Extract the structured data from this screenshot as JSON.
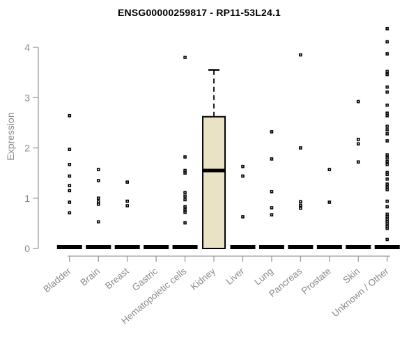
{
  "chart_data": {
    "type": "boxplot",
    "title": "ENSG00000259817 - RP11-53L24.1",
    "ylabel": "Expression",
    "xlabel": "",
    "yticks": [
      0,
      1,
      2,
      3,
      4
    ],
    "ylim": [
      0,
      4.4
    ],
    "grid": false,
    "legend": "none",
    "box_fill": "#EAE2C4",
    "box_stroke": "#000000",
    "axis_color": "#9B9B9B",
    "text_color": "#8A8A8A",
    "point_color": "#000000",
    "categories": [
      "Bladder",
      "Brain",
      "Breast",
      "Gastric",
      "Hematopoietic cells",
      "Kidney",
      "Liver",
      "Lung",
      "Pancreas",
      "Prostate",
      "Skin",
      "Unknown / Other"
    ],
    "groups": [
      {
        "name": "Bladder",
        "box": {
          "low": 0,
          "q1": 0,
          "median": 0,
          "q3": 0,
          "high": 0
        },
        "points": [
          2.64,
          1.97,
          1.67,
          1.44,
          1.25,
          1.15,
          0.92,
          0.71
        ]
      },
      {
        "name": "Brain",
        "box": {
          "low": 0,
          "q1": 0,
          "median": 0,
          "q3": 0,
          "high": 0
        },
        "points": [
          1.57,
          1.35,
          1.0,
          0.93,
          0.88,
          0.53
        ]
      },
      {
        "name": "Breast",
        "box": {
          "low": 0,
          "q1": 0,
          "median": 0,
          "q3": 0,
          "high": 0
        },
        "points": [
          1.32,
          0.94,
          0.85
        ]
      },
      {
        "name": "Gastric",
        "box": {
          "low": 0,
          "q1": 0,
          "median": 0,
          "q3": 0,
          "high": 0
        },
        "points": []
      },
      {
        "name": "Hematopoietic cells",
        "box": {
          "low": 0,
          "q1": 0,
          "median": 0,
          "q3": 0,
          "high": 0
        },
        "points": [
          3.8,
          1.82,
          1.55,
          1.5,
          1.11,
          1.04,
          0.97,
          0.83,
          0.77,
          0.72,
          0.51
        ]
      },
      {
        "name": "Kidney",
        "box": {
          "low": 0,
          "q1": 0,
          "median": 1.55,
          "q3": 2.62,
          "high": 3.55
        },
        "points": []
      },
      {
        "name": "Liver",
        "box": {
          "low": 0,
          "q1": 0,
          "median": 0,
          "q3": 0,
          "high": 0
        },
        "points": [
          1.63,
          1.44,
          0.63
        ]
      },
      {
        "name": "Lung",
        "box": {
          "low": 0,
          "q1": 0,
          "median": 0,
          "q3": 0,
          "high": 0
        },
        "points": [
          2.32,
          1.78,
          1.13,
          0.81,
          0.67
        ]
      },
      {
        "name": "Pancreas",
        "box": {
          "low": 0,
          "q1": 0,
          "median": 0,
          "q3": 0,
          "high": 0
        },
        "points": [
          3.85,
          2.0,
          0.93,
          0.86,
          0.8
        ]
      },
      {
        "name": "Prostate",
        "box": {
          "low": 0,
          "q1": 0,
          "median": 0,
          "q3": 0,
          "high": 0
        },
        "points": [
          1.57,
          0.92
        ]
      },
      {
        "name": "Skin",
        "box": {
          "low": 0,
          "q1": 0,
          "median": 0,
          "q3": 0,
          "high": 0
        },
        "points": [
          2.92,
          2.17,
          2.08,
          1.72
        ]
      },
      {
        "name": "Unknown / Other",
        "box": {
          "low": 0,
          "q1": 0,
          "median": 0,
          "q3": 0,
          "high": 0
        },
        "points": [
          4.37,
          4.11,
          3.87,
          3.52,
          3.46,
          3.21,
          3.11,
          2.85,
          2.69,
          2.64,
          2.43,
          2.36,
          2.28,
          2.14,
          1.86,
          1.8,
          1.73,
          1.67,
          1.51,
          1.47,
          1.38,
          1.28,
          1.22,
          1.17,
          0.94,
          0.83,
          0.68,
          0.63,
          0.58,
          0.53,
          0.49,
          0.44,
          0.4,
          0.18
        ]
      }
    ]
  }
}
